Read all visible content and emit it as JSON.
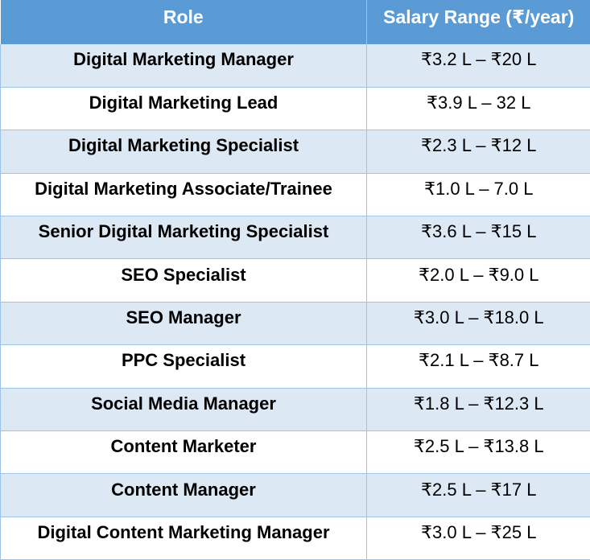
{
  "table": {
    "headers": {
      "role": "Role",
      "salary": "Salary Range (₹/year)"
    },
    "rows": [
      {
        "role": "Digital Marketing Manager",
        "salary": "₹3.2 L – ₹20 L"
      },
      {
        "role": "Digital Marketing Lead",
        "salary": "₹3.9 L – 32 L"
      },
      {
        "role": "Digital Marketing Specialist",
        "salary": "₹2.3 L – ₹12 L"
      },
      {
        "role": "Digital Marketing Associate/Trainee",
        "salary": "₹1.0 L – 7.0 L"
      },
      {
        "role": "Senior Digital Marketing Specialist",
        "salary": "₹3.6 L – ₹15 L"
      },
      {
        "role": "SEO Specialist",
        "salary": "₹2.0 L – ₹9.0 L"
      },
      {
        "role": "SEO Manager",
        "salary": "₹3.0 L – ₹18.0 L"
      },
      {
        "role": "PPC Specialist",
        "salary": "₹2.1 L – ₹8.7 L"
      },
      {
        "role": "Social Media Manager",
        "salary": "₹1.8 L – ₹12.3 L"
      },
      {
        "role": "Content Marketer",
        "salary": "₹2.5 L – ₹13.8 L"
      },
      {
        "role": "Content Manager",
        "salary": "₹2.5 L – ₹17 L"
      },
      {
        "role": "Digital Content Marketing Manager",
        "salary": "₹3.0 L – ₹25 L"
      }
    ]
  },
  "colors": {
    "header_bg": "#5b9bd5",
    "band_bg": "#dde8f5",
    "border": "#9dc3e6"
  }
}
